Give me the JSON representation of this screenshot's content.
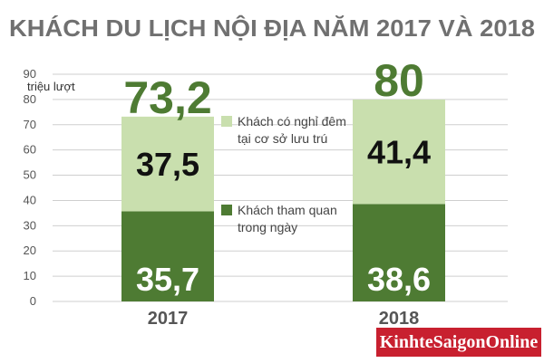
{
  "chart_data": {
    "type": "bar",
    "stacked": true,
    "title": "KHÁCH DU LỊCH NỘI ĐỊA NĂM 2017 VÀ 2018",
    "ylabel": "triệu lượt",
    "ylim": [
      0,
      90
    ],
    "yticks": [
      0,
      10,
      20,
      30,
      40,
      50,
      60,
      70,
      80,
      90
    ],
    "grid": true,
    "categories": [
      "2017",
      "2018"
    ],
    "series": [
      {
        "name": "Khách tham quan trong ngày",
        "values": [
          35.7,
          38.6
        ],
        "labels": [
          "35,7",
          "38,6"
        ],
        "color": "#4e7b33"
      },
      {
        "name": "Khách có nghỉ đêm tại cơ sở lưu trú",
        "values": [
          37.5,
          41.4
        ],
        "labels": [
          "37,5",
          "41,4"
        ],
        "color": "#c9dfae"
      }
    ],
    "totals": [
      "73,2",
      "80"
    ],
    "legend": [
      {
        "line1": "Khách có nghỉ đêm",
        "line2": "tại cơ sở lưu trú",
        "color": "#c9dfae"
      },
      {
        "line1": "Khách tham quan",
        "line2": "trong ngày",
        "color": "#4e7b33"
      }
    ]
  },
  "branding": {
    "logo": "KinhteSaigonOnline"
  }
}
